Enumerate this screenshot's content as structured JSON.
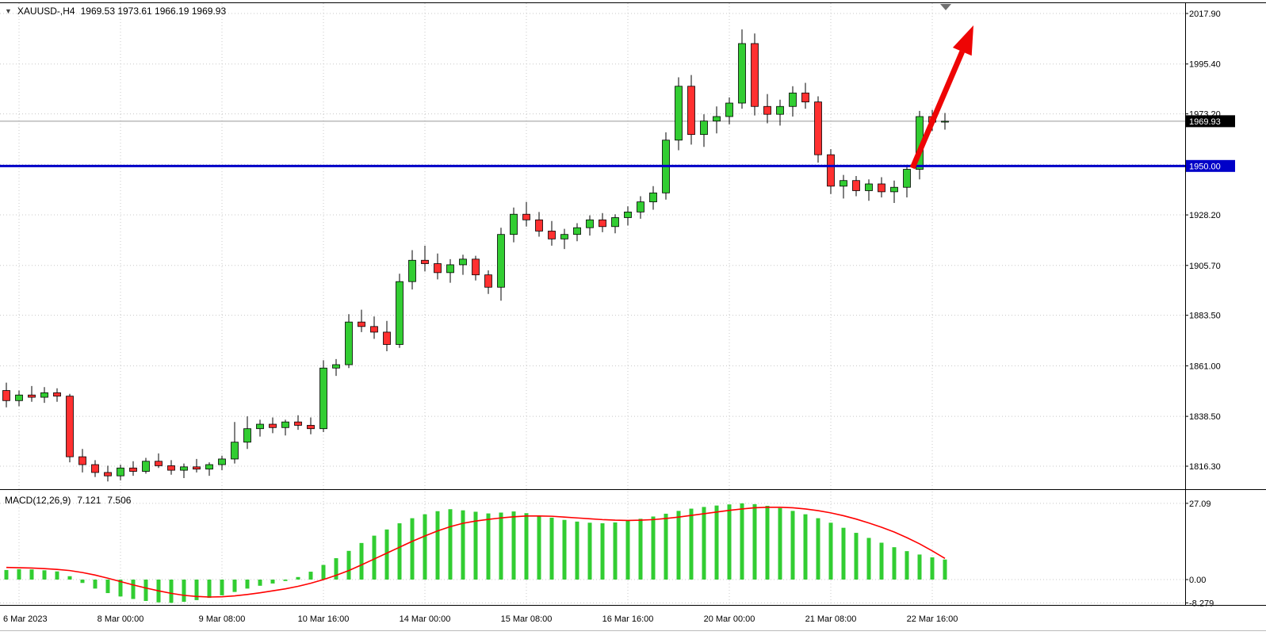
{
  "header": {
    "symbol_period": "XAUUSD-,H4",
    "ohlc_text": "1969.53 1973.61 1966.19 1969.93"
  },
  "macd_header": {
    "label": "MACD(12,26,9)",
    "main_value": "7.121",
    "signal_value": "7.506"
  },
  "colors": {
    "bull": "#32CD32",
    "bear": "#FF3030",
    "wick": "#000000",
    "grid": "#C8C8C8",
    "background": "#FFFFFF",
    "axis_text": "#000000",
    "bid_line": "#999999",
    "frame": "#000000"
  },
  "chart_data": {
    "type": "candlestick",
    "symbol": "XAUUSD-",
    "timeframe": "H4",
    "current_candle": {
      "open": 1969.53,
      "high": 1973.61,
      "low": 1966.19,
      "close": 1969.93
    },
    "price_axis": {
      "labels": [
        "2017.90",
        "1995.40",
        "1973.20",
        "1928.20",
        "1905.70",
        "1883.50",
        "1861.00",
        "1838.50",
        "1816.30"
      ],
      "grid_prices": [
        2017.9,
        1995.4,
        1973.2,
        1950.7,
        1928.2,
        1905.7,
        1883.5,
        1861.0,
        1838.5,
        1816.3
      ]
    },
    "time_axis": {
      "labels": [
        {
          "i": 1,
          "label": "6 Mar 2023"
        },
        {
          "i": 9,
          "label": "8 Mar 00:00"
        },
        {
          "i": 17,
          "label": "9 Mar 08:00"
        },
        {
          "i": 25,
          "label": "10 Mar 16:00"
        },
        {
          "i": 33,
          "label": "14 Mar 00:00"
        },
        {
          "i": 41,
          "label": "15 Mar 08:00"
        },
        {
          "i": 49,
          "label": "16 Mar 16:00"
        },
        {
          "i": 57,
          "label": "20 Mar 00:00"
        },
        {
          "i": 65,
          "label": "21 Mar 08:00"
        },
        {
          "i": 73,
          "label": "22 Mar 16:00"
        }
      ]
    },
    "support_line": {
      "price": 1950.0,
      "label": "1950.00",
      "color": "#0000C8"
    },
    "current_price_tag": {
      "label": "1969.93",
      "bg": "#000000",
      "price": 1969.93
    },
    "trend_arrow": {
      "direction": "up",
      "color": "#EE0505"
    },
    "shift_marker": {
      "color": "#707070"
    },
    "candles": [
      [
        1850.0,
        1853.5,
        1842.5,
        1845.5
      ],
      [
        1845.5,
        1850.0,
        1843.0,
        1848.0
      ],
      [
        1848.0,
        1852.0,
        1845.0,
        1847.0
      ],
      [
        1847.0,
        1851.5,
        1844.5,
        1849.0
      ],
      [
        1849.0,
        1851.0,
        1845.0,
        1847.5
      ],
      [
        1847.5,
        1848.5,
        1818.0,
        1820.5
      ],
      [
        1820.5,
        1824.0,
        1813.5,
        1817.0
      ],
      [
        1817.0,
        1819.0,
        1811.5,
        1813.5
      ],
      [
        1813.5,
        1816.5,
        1809.5,
        1812.0
      ],
      [
        1812.0,
        1817.0,
        1810.0,
        1815.5
      ],
      [
        1815.5,
        1818.5,
        1812.0,
        1814.0
      ],
      [
        1814.0,
        1820.0,
        1813.0,
        1818.5
      ],
      [
        1818.5,
        1822.0,
        1815.5,
        1816.5
      ],
      [
        1816.5,
        1819.0,
        1812.5,
        1814.5
      ],
      [
        1814.5,
        1817.5,
        1811.0,
        1816.0
      ],
      [
        1816.0,
        1819.5,
        1813.5,
        1815.0
      ],
      [
        1815.0,
        1818.0,
        1812.0,
        1817.0
      ],
      [
        1817.0,
        1821.0,
        1814.5,
        1819.5
      ],
      [
        1819.5,
        1836.0,
        1817.5,
        1827.0
      ],
      [
        1827.0,
        1838.5,
        1824.0,
        1833.0
      ],
      [
        1833.0,
        1837.0,
        1829.5,
        1835.0
      ],
      [
        1835.0,
        1838.0,
        1831.0,
        1833.5
      ],
      [
        1833.5,
        1837.0,
        1830.0,
        1836.0
      ],
      [
        1836.0,
        1839.0,
        1832.5,
        1834.5
      ],
      [
        1834.5,
        1838.0,
        1830.5,
        1833.0
      ],
      [
        1833.0,
        1863.5,
        1831.5,
        1860.0
      ],
      [
        1860.0,
        1864.0,
        1856.5,
        1861.5
      ],
      [
        1861.5,
        1884.0,
        1860.0,
        1880.5
      ],
      [
        1880.5,
        1886.0,
        1876.0,
        1878.5
      ],
      [
        1878.5,
        1883.0,
        1873.0,
        1876.0
      ],
      [
        1876.0,
        1881.0,
        1867.5,
        1870.5
      ],
      [
        1870.5,
        1902.0,
        1869.0,
        1898.5
      ],
      [
        1898.5,
        1912.5,
        1895.0,
        1908.0
      ],
      [
        1908.0,
        1914.5,
        1903.0,
        1906.5
      ],
      [
        1906.5,
        1911.0,
        1899.5,
        1902.5
      ],
      [
        1902.5,
        1908.5,
        1898.0,
        1906.0
      ],
      [
        1906.0,
        1910.5,
        1901.5,
        1908.5
      ],
      [
        1908.5,
        1910.0,
        1899.0,
        1901.5
      ],
      [
        1901.5,
        1903.5,
        1893.0,
        1896.0
      ],
      [
        1896.0,
        1922.5,
        1890.0,
        1919.5
      ],
      [
        1919.5,
        1931.5,
        1916.0,
        1928.5
      ],
      [
        1928.5,
        1934.0,
        1923.0,
        1926.0
      ],
      [
        1926.0,
        1929.5,
        1918.5,
        1921.0
      ],
      [
        1921.0,
        1925.5,
        1914.5,
        1917.5
      ],
      [
        1917.5,
        1922.0,
        1913.0,
        1919.5
      ],
      [
        1919.5,
        1924.5,
        1916.5,
        1922.5
      ],
      [
        1922.5,
        1928.0,
        1919.0,
        1926.0
      ],
      [
        1926.0,
        1929.0,
        1920.5,
        1923.0
      ],
      [
        1923.0,
        1928.5,
        1920.0,
        1927.0
      ],
      [
        1927.0,
        1932.0,
        1923.5,
        1929.5
      ],
      [
        1929.5,
        1936.5,
        1926.5,
        1934.0
      ],
      [
        1934.0,
        1941.0,
        1930.5,
        1938.0
      ],
      [
        1938.0,
        1965.0,
        1935.0,
        1961.5
      ],
      [
        1961.5,
        1989.5,
        1957.0,
        1985.5
      ],
      [
        1985.5,
        1990.5,
        1959.5,
        1964.0
      ],
      [
        1964.0,
        1973.0,
        1958.5,
        1970.0
      ],
      [
        1970.0,
        1976.5,
        1964.5,
        1972.0
      ],
      [
        1972.0,
        1980.5,
        1968.5,
        1978.0
      ],
      [
        1978.0,
        2010.8,
        1975.5,
        2004.5
      ],
      [
        2004.5,
        2009.0,
        1972.5,
        1976.5
      ],
      [
        1976.5,
        1982.0,
        1969.0,
        1973.0
      ],
      [
        1973.0,
        1979.5,
        1968.0,
        1976.5
      ],
      [
        1976.5,
        1985.5,
        1972.0,
        1982.5
      ],
      [
        1982.5,
        1987.0,
        1975.5,
        1978.5
      ],
      [
        1978.5,
        1981.0,
        1951.5,
        1955.0
      ],
      [
        1955.0,
        1957.5,
        1937.5,
        1941.0
      ],
      [
        1941.0,
        1946.0,
        1935.5,
        1943.5
      ],
      [
        1943.5,
        1945.5,
        1936.5,
        1939.0
      ],
      [
        1939.0,
        1944.0,
        1934.5,
        1942.0
      ],
      [
        1942.0,
        1945.0,
        1936.0,
        1938.5
      ],
      [
        1938.5,
        1943.5,
        1933.5,
        1940.5
      ],
      [
        1940.5,
        1950.5,
        1936.0,
        1948.5
      ],
      [
        1948.5,
        1974.5,
        1944.0,
        1972.0
      ],
      [
        1972.0,
        1975.0,
        1965.5,
        1969.5
      ],
      [
        1969.53,
        1973.61,
        1966.19,
        1969.93
      ]
    ],
    "macd": {
      "axis_labels": [
        "27.09",
        "0.00",
        "-8.279"
      ],
      "histogram_color": "#32CD32",
      "signal_color": "#FF0000",
      "histogram": [
        3.4,
        3.7,
        3.6,
        3.3,
        2.9,
        1.2,
        -1.2,
        -3.2,
        -4.8,
        -6.0,
        -6.9,
        -7.6,
        -8.1,
        -8.279,
        -7.9,
        -7.3,
        -6.5,
        -5.6,
        -4.4,
        -3.2,
        -2.2,
        -1.4,
        -0.5,
        0.9,
        2.8,
        5.2,
        7.6,
        10.2,
        13.0,
        15.6,
        17.8,
        20.0,
        21.8,
        23.2,
        24.3,
        25.0,
        24.6,
        24.1,
        23.5,
        23.8,
        24.2,
        23.6,
        22.8,
        22.0,
        21.2,
        20.6,
        20.2,
        20.0,
        20.3,
        20.9,
        21.6,
        22.4,
        23.4,
        24.4,
        25.2,
        25.8,
        26.3,
        26.7,
        27.09,
        26.8,
        26.2,
        25.4,
        24.4,
        23.2,
        21.8,
        20.2,
        18.4,
        16.6,
        14.8,
        13.1,
        11.5,
        10.1,
        8.9,
        7.9,
        7.121
      ],
      "signal": [
        4.3,
        4.2,
        4.1,
        3.9,
        3.6,
        3.2,
        2.5,
        1.6,
        0.5,
        -0.7,
        -1.9,
        -3.0,
        -4.0,
        -4.9,
        -5.6,
        -6.0,
        -6.2,
        -6.1,
        -5.8,
        -5.3,
        -4.7,
        -4.0,
        -3.3,
        -2.4,
        -1.3,
        0.0,
        1.5,
        3.2,
        5.2,
        7.3,
        9.4,
        11.5,
        13.6,
        15.5,
        17.3,
        18.8,
        20.0,
        20.8,
        21.4,
        21.9,
        22.3,
        22.6,
        22.6,
        22.5,
        22.2,
        21.9,
        21.6,
        21.3,
        21.1,
        21.0,
        21.1,
        21.3,
        21.7,
        22.2,
        22.8,
        23.4,
        24.0,
        24.6,
        25.1,
        25.5,
        25.7,
        25.7,
        25.5,
        25.1,
        24.5,
        23.7,
        22.7,
        21.5,
        20.1,
        18.6,
        16.9,
        14.9,
        12.7,
        10.2,
        7.506
      ]
    }
  }
}
